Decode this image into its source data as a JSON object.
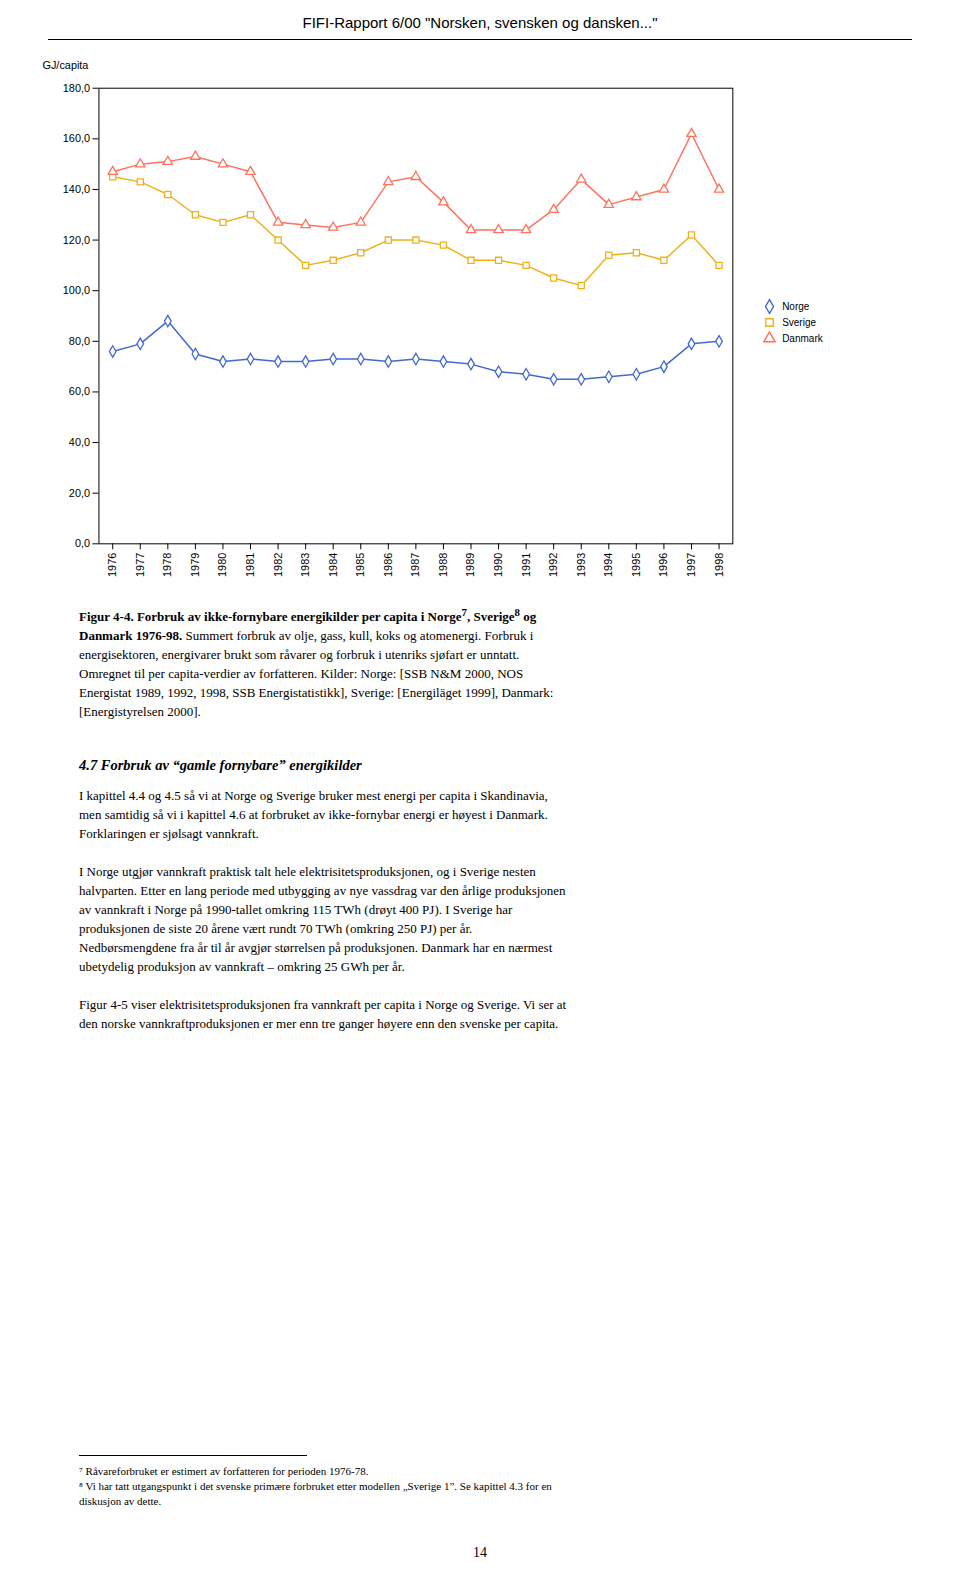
{
  "chart_data": {
    "type": "line",
    "title": "FIFI-Rapport 6/00 \"Norsken, svensken og dansken...\"",
    "ylabel": "GJ/capita",
    "x": [
      1976,
      1977,
      1978,
      1979,
      1980,
      1981,
      1982,
      1983,
      1984,
      1985,
      1986,
      1987,
      1988,
      1989,
      1990,
      1991,
      1992,
      1993,
      1994,
      1995,
      1996,
      1997,
      1998
    ],
    "series": [
      {
        "name": "Norge",
        "marker": "diamond",
        "values": [
          76,
          79,
          88,
          75,
          72,
          73,
          72,
          72,
          73,
          73,
          72,
          73,
          72,
          71,
          68,
          67,
          65,
          65,
          66,
          67,
          70,
          79,
          80
        ]
      },
      {
        "name": "Sverige",
        "marker": "square",
        "values": [
          145,
          143,
          138,
          130,
          127,
          130,
          120,
          110,
          112,
          115,
          120,
          120,
          118,
          112,
          112,
          110,
          105,
          102,
          114,
          115,
          112,
          122,
          110
        ]
      },
      {
        "name": "Danmark",
        "marker": "triangle",
        "values": [
          147,
          150,
          151,
          153,
          150,
          147,
          127,
          126,
          125,
          127,
          143,
          145,
          135,
          124,
          124,
          124,
          132,
          144,
          134,
          137,
          140,
          162,
          140
        ]
      }
    ],
    "xlim": [
      1975.5,
      1998.5
    ],
    "xticks": [
      1976,
      1977,
      1978,
      1979,
      1980,
      1981,
      1982,
      1983,
      1984,
      1985,
      1986,
      1987,
      1988,
      1989,
      1990,
      1991,
      1992,
      1993,
      1994,
      1995,
      1996,
      1997,
      1998
    ],
    "ylim": [
      0,
      180
    ],
    "yticks": [
      {
        "value": 0,
        "label": "0,0"
      },
      {
        "value": 20,
        "label": "20,0"
      },
      {
        "value": 40,
        "label": "40,0"
      },
      {
        "value": 60,
        "label": "60,0"
      },
      {
        "value": 80,
        "label": "80,0"
      },
      {
        "value": 100,
        "label": "100,0"
      },
      {
        "value": 120,
        "label": "120,0"
      },
      {
        "value": 140,
        "label": "140,0"
      },
      {
        "value": 160,
        "label": "160,0"
      },
      {
        "value": 180,
        "label": "180,0"
      }
    ],
    "grid": false,
    "legend": "right"
  },
  "page": {
    "caption": [
      [
        "Figur 4-4. Forbruk av ikke-fornybare energikilder per capita i Norge",
        "7",
        ", Sverige",
        "8",
        " og"
      ],
      [
        "Danmark 1976-98.",
        " Summert forbruk av olje, gass, kull, koks og atomenergi. Forbruk i"
      ],
      [
        "energisektoren, energivarer brukt som råvarer og forbruk i utenriks sjøfart er unntatt."
      ],
      [
        "Omregnet til per capita-verdier av forfatteren. Kilder: Norge: [SSB N&M 2000, NOS"
      ],
      [
        "Energistat 1989, 1992, 1998, SSB Energistatistikk], Sverige: [Energiläget 1999], Danmark:"
      ],
      [
        "[Energistyrelsen 2000]."
      ]
    ],
    "section_title": "4.7  Forbruk av “gamle fornybare” energikilder",
    "body": [
      [
        "I kapittel 4.4 og 4.5 så vi at Norge og Sverige bruker mest energi per capita i Skandinavia,",
        "men samtidig så vi i kapittel 4.6 at forbruket av ikke-fornybar energi er høyest i Danmark.",
        "Forklaringen er sjølsagt vannkraft."
      ],
      [
        "I Norge utgjør vannkraft praktisk talt hele elektrisitetsproduksjonen, og i Sverige nesten",
        "halvparten. Etter en lang periode med utbygging av nye vassdrag var den årlige produksjonen",
        "av vannkraft i Norge på 1990-tallet omkring 115 TWh (drøyt 400 PJ). I Sverige har",
        "produksjonen de siste 20 årene vært rundt 70 TWh (omkring 250 PJ) per år.",
        "Nedbørsmengdene fra år til år avgjør størrelsen på produksjonen. Danmark har en nærmest",
        "ubetydelig produksjon av vannkraft – omkring 25 GWh per år."
      ],
      [
        "Figur 4-5 viser elektrisitetsproduksjonen fra vannkraft per capita i Norge og Sverige. Vi ser at",
        "den norske vannkraftproduksjonen er mer enn tre ganger høyere enn den svenske per capita."
      ]
    ],
    "footnotes": [
      "⁷ Råvareforbruket er estimert av forfatteren for perioden 1976-78.",
      "⁸ Vi har tatt utgangspunkt i det svenske primære forbruket etter modellen „Sverige 1”. Se kapittel 4.3 for en",
      "diskusjon av dette."
    ],
    "page_number": "14"
  }
}
